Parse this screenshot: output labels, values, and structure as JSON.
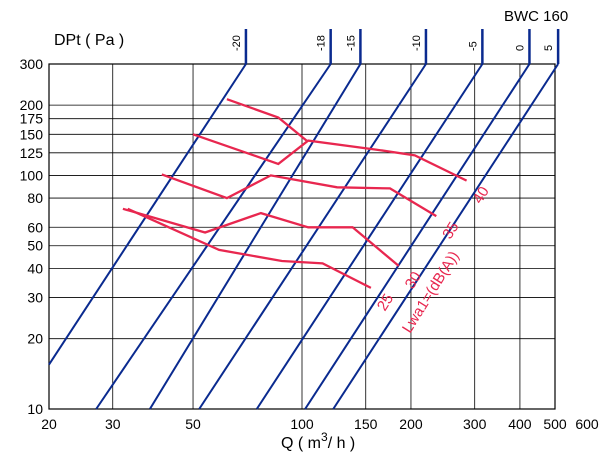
{
  "chart_data": {
    "type": "line",
    "title": "BWC 160",
    "ylabel": "DPt ( Pa )",
    "xlabel_parts": [
      "Q ( m",
      "3",
      "/ h )"
    ],
    "x_scale": "log",
    "y_scale": "log",
    "xlim": [
      20,
      600
    ],
    "ylim": [
      10,
      300
    ],
    "x_ticks": [
      20,
      30,
      50,
      100,
      150,
      200,
      300,
      400,
      500,
      600
    ],
    "y_ticks": [
      10,
      20,
      30,
      40,
      50,
      60,
      80,
      100,
      125,
      150,
      175,
      200,
      300
    ],
    "grid": true,
    "colors": {
      "system_line": "#0a2a8f",
      "noise_line": "#e8274f",
      "grid": "#000000"
    },
    "damper_settings": [
      {
        "label": "-20",
        "points": [
          [
            20,
            15.5
          ],
          [
            70,
            300
          ]
        ]
      },
      {
        "label": "-18",
        "points": [
          [
            27,
            10
          ],
          [
            120,
            300
          ]
        ]
      },
      {
        "label": "-15",
        "points": [
          [
            38,
            10
          ],
          [
            145,
            300
          ]
        ]
      },
      {
        "label": "-10",
        "points": [
          [
            52,
            10
          ],
          [
            220,
            300
          ]
        ]
      },
      {
        "label": "-5",
        "points": [
          [
            75,
            10
          ],
          [
            315,
            300
          ]
        ]
      },
      {
        "label": "0",
        "points": [
          [
            102,
            10
          ],
          [
            425,
            300
          ]
        ]
      },
      {
        "label": "5",
        "points": [
          [
            122,
            10
          ],
          [
            510,
            300
          ]
        ]
      }
    ],
    "noise_series": [
      {
        "label": "25",
        "points": [
          [
            33,
            72
          ],
          [
            59,
            48
          ],
          [
            88,
            43
          ],
          [
            114,
            42
          ],
          [
            155,
            33
          ]
        ]
      },
      {
        "label": "30",
        "points": [
          [
            32,
            72
          ],
          [
            54,
            57
          ],
          [
            77,
            69
          ],
          [
            104,
            60
          ],
          [
            138,
            60
          ],
          [
            185,
            41
          ]
        ]
      },
      {
        "label": "35",
        "points": [
          [
            41,
            101
          ],
          [
            62,
            80
          ],
          [
            82,
            100
          ],
          [
            125,
            89
          ],
          [
            175,
            88
          ],
          [
            235,
            67
          ]
        ]
      },
      {
        "label": "40",
        "points": [
          [
            50,
            150
          ],
          [
            86,
            112
          ],
          [
            104,
            141
          ],
          [
            160,
            129
          ],
          [
            205,
            122
          ],
          [
            285,
            95
          ]
        ]
      },
      {
        "label": "",
        "points": [
          [
            62,
            212
          ],
          [
            86,
            177
          ],
          [
            103,
            141
          ]
        ]
      }
    ],
    "noise_axis_label": "Lwa1=(dB(A))"
  }
}
